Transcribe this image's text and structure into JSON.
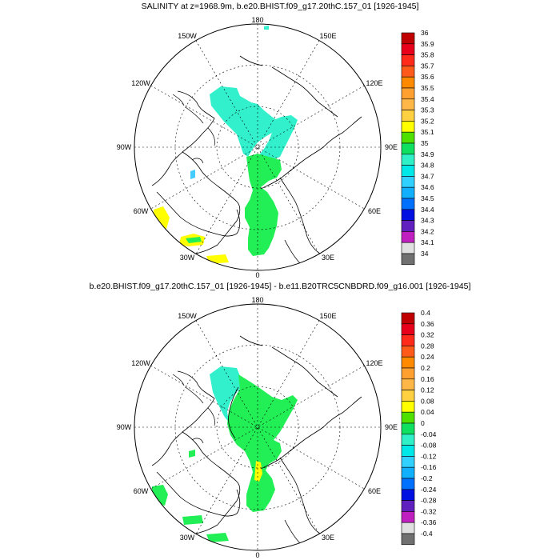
{
  "panels": [
    {
      "id": "top",
      "title": "SALINITY at z=1968.9m, b.e20.BHIST.f09_g17.20thC.157_01 [1926-1945]",
      "lon_labels": {
        "180": "180",
        "150W": "150W",
        "150E": "150E",
        "120W": "120W",
        "120E": "120E",
        "90W": "90W",
        "90E": "90E",
        "60W": "60W",
        "60E": "60E",
        "30W": "30W",
        "30E": "30E",
        "0": "0"
      },
      "colorbar": {
        "labels": [
          "36",
          "35.9",
          "35.8",
          "35.7",
          "35.6",
          "35.5",
          "35.4",
          "35.3",
          "35.2",
          "35.1",
          "35",
          "34.9",
          "34.8",
          "34.7",
          "34.6",
          "34.5",
          "34.4",
          "34.3",
          "34.2",
          "34.1",
          "34"
        ],
        "colors": [
          "#c00000",
          "#e8001a",
          "#ff2a1a",
          "#ff5a1a",
          "#ff8a00",
          "#ffa030",
          "#ffb848",
          "#ffd040",
          "#ffff00",
          "#50e000",
          "#10e060",
          "#30f0c8",
          "#00e8e8",
          "#30d0ff",
          "#10b0ff",
          "#0070ff",
          "#0010e0",
          "#6020c0",
          "#c020c0",
          "#e0e0e0",
          "#707070"
        ]
      }
    },
    {
      "id": "bottom",
      "title": "b.e20.BHIST.f09_g17.20thC.157_01 [1926-1945] - b.e11.B20TRC5CNBDRD.f09_g16.001 [1926-1945]",
      "lon_labels": {
        "180": "180",
        "150W": "150W",
        "150E": "150E",
        "120W": "120W",
        "120E": "120E",
        "90W": "90W",
        "90E": "90E",
        "60W": "60W",
        "60E": "60E",
        "30W": "30W",
        "30E": "30E",
        "0": "0"
      },
      "colorbar": {
        "labels": [
          "0.4",
          "0.36",
          "0.32",
          "0.28",
          "0.24",
          "0.2",
          "0.16",
          "0.12",
          "0.08",
          "0.04",
          "0",
          "-0.04",
          "-0.08",
          "-0.12",
          "-0.16",
          "-0.2",
          "-0.24",
          "-0.28",
          "-0.32",
          "-0.36",
          "-0.4"
        ],
        "colors": [
          "#c00000",
          "#e8001a",
          "#ff2a1a",
          "#ff5a1a",
          "#ff8a00",
          "#ffa030",
          "#ffb848",
          "#ffd040",
          "#ffff00",
          "#50e000",
          "#10e060",
          "#30f0c8",
          "#00e8e8",
          "#30d0ff",
          "#10b0ff",
          "#0070ff",
          "#0010e0",
          "#6020c0",
          "#c020c0",
          "#e0e0e0",
          "#707070"
        ]
      }
    }
  ],
  "fill_colors": {
    "green": "#22ee55",
    "cyan": "#33f0cc",
    "yellow": "#ffff00",
    "lightblue": "#44ccff"
  }
}
